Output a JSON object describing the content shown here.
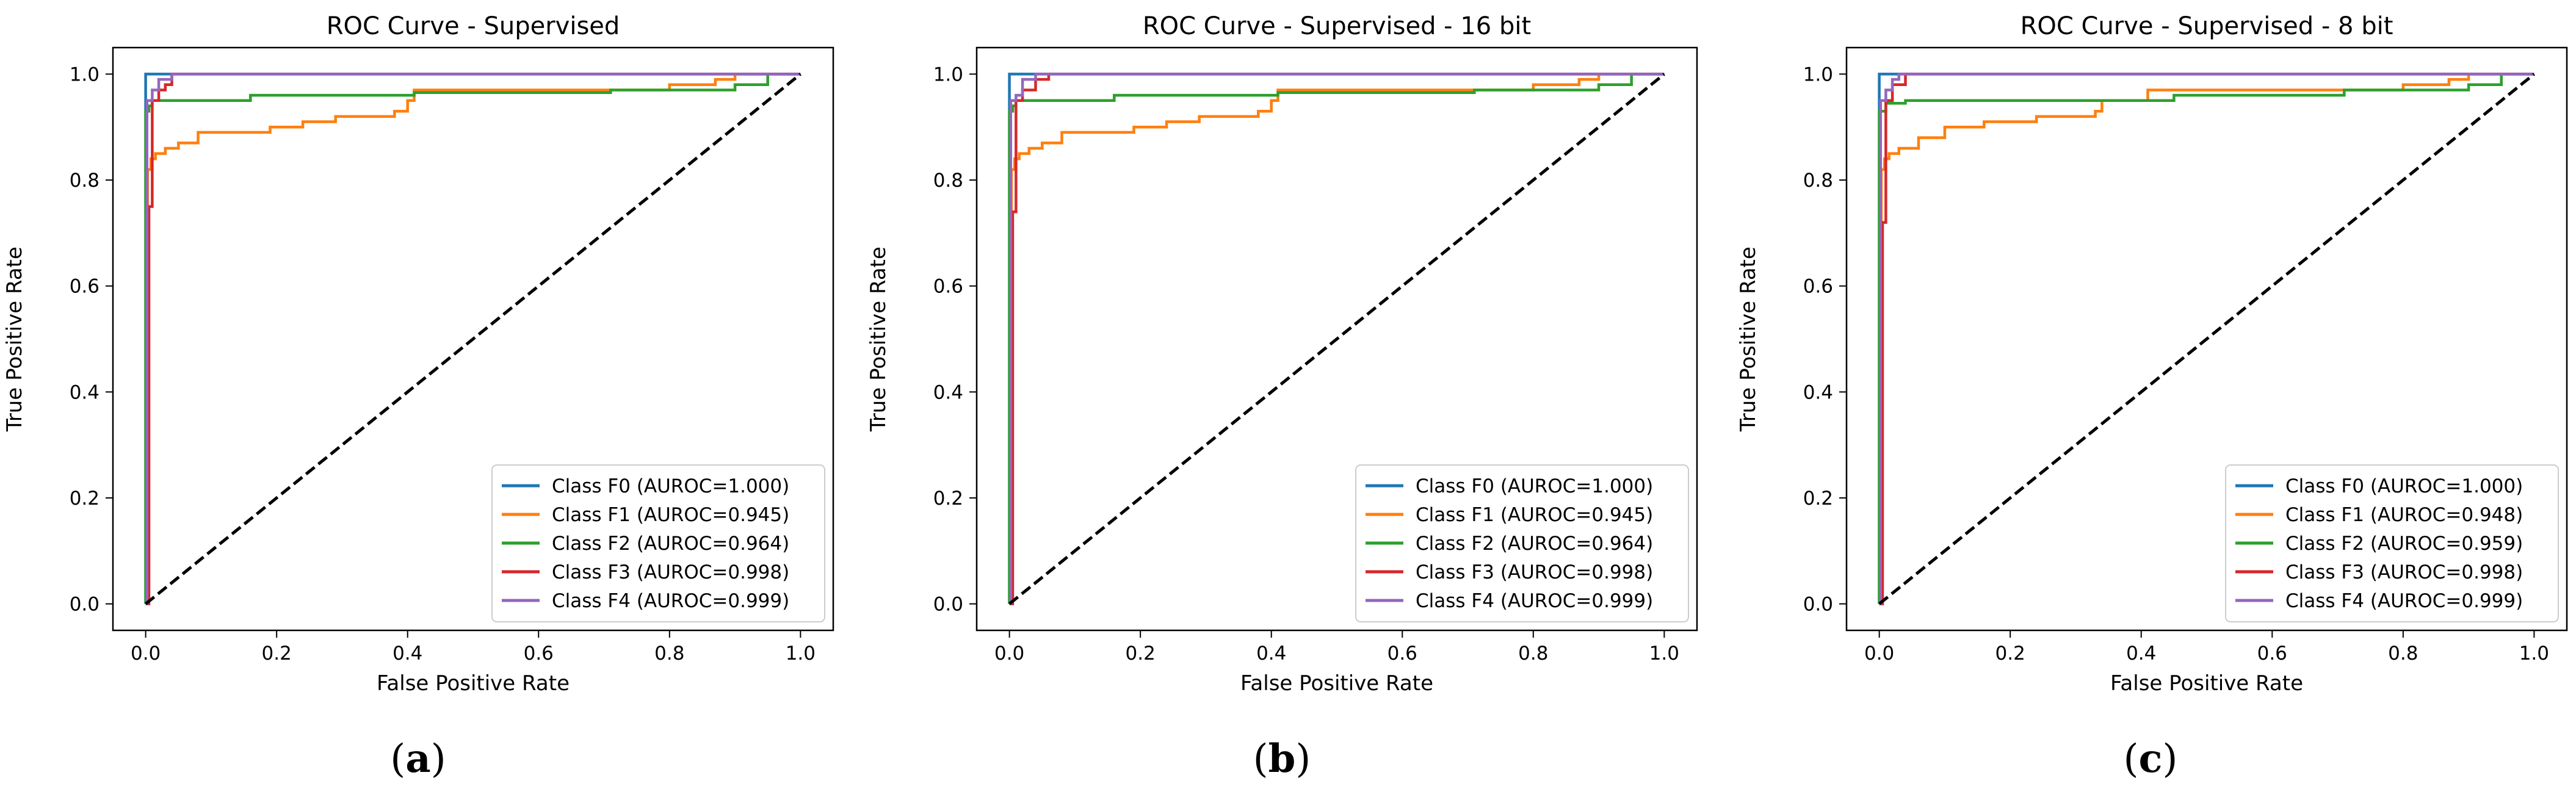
{
  "chart_data": [
    {
      "type": "line",
      "title": "ROC Curve - Supervised",
      "xlabel": "False Positive Rate",
      "ylabel": "True Positive Rate",
      "xlim": [
        -0.05,
        1.05
      ],
      "ylim": [
        -0.05,
        1.05
      ],
      "xticks": [
        "0.0",
        "0.2",
        "0.4",
        "0.6",
        "0.8",
        "1.0"
      ],
      "yticks": [
        "0.0",
        "0.2",
        "0.4",
        "0.6",
        "0.8",
        "1.0"
      ],
      "legend_position": "lower-right",
      "caption_letter": "a",
      "series": [
        {
          "name": "Class F0 (AUROC=1.000)",
          "color": "#1f77b4",
          "x": [
            0,
            0,
            0.003,
            0.02,
            1.0
          ],
          "y": [
            0,
            1.0,
            1.0,
            1.0,
            1.0
          ]
        },
        {
          "name": "Class F1 (AUROC=0.945)",
          "color": "#ff7f0e",
          "x": [
            0,
            0.003,
            0.003,
            0.008,
            0.008,
            0.015,
            0.015,
            0.03,
            0.03,
            0.05,
            0.05,
            0.08,
            0.08,
            0.19,
            0.19,
            0.24,
            0.24,
            0.29,
            0.29,
            0.38,
            0.38,
            0.4,
            0.4,
            0.41,
            0.41,
            0.8,
            0.8,
            0.87,
            0.87,
            0.9,
            0.9,
            1.0
          ],
          "y": [
            0,
            0,
            0.82,
            0.82,
            0.84,
            0.84,
            0.85,
            0.85,
            0.86,
            0.86,
            0.87,
            0.87,
            0.89,
            0.89,
            0.9,
            0.9,
            0.91,
            0.91,
            0.92,
            0.92,
            0.93,
            0.93,
            0.95,
            0.95,
            0.97,
            0.97,
            0.98,
            0.98,
            0.99,
            0.99,
            1.0,
            1.0
          ]
        },
        {
          "name": "Class F2 (AUROC=0.964)",
          "color": "#2ca02c",
          "x": [
            0,
            0,
            0.005,
            0.005,
            0.01,
            0.01,
            0.16,
            0.16,
            0.41,
            0.41,
            0.71,
            0.71,
            0.9,
            0.9,
            0.95,
            0.95,
            1.0
          ],
          "y": [
            0,
            0.93,
            0.93,
            0.94,
            0.94,
            0.95,
            0.95,
            0.96,
            0.96,
            0.965,
            0.965,
            0.97,
            0.97,
            0.98,
            0.98,
            1.0,
            1.0
          ]
        },
        {
          "name": "Class F3 (AUROC=0.998)",
          "color": "#d62728",
          "x": [
            0,
            0.005,
            0.005,
            0.01,
            0.01,
            0.02,
            0.02,
            0.03,
            0.03,
            0.04,
            0.04,
            1.0
          ],
          "y": [
            0,
            0,
            0.75,
            0.75,
            0.95,
            0.95,
            0.97,
            0.97,
            0.98,
            0.98,
            1.0,
            1.0
          ]
        },
        {
          "name": "Class F4 (AUROC=0.999)",
          "color": "#9467bd",
          "x": [
            0,
            0.002,
            0.002,
            0.01,
            0.01,
            0.02,
            0.02,
            0.04,
            0.04,
            1.0
          ],
          "y": [
            0,
            0,
            0.95,
            0.95,
            0.97,
            0.97,
            0.99,
            0.99,
            1.0,
            1.0
          ]
        },
        {
          "name": "chance",
          "color": "#000000",
          "dashed": true,
          "legend": false,
          "x": [
            0,
            1
          ],
          "y": [
            0,
            1
          ]
        }
      ]
    },
    {
      "type": "line",
      "title": "ROC Curve - Supervised - 16 bit",
      "xlabel": "False Positive Rate",
      "ylabel": "True Positive Rate",
      "xlim": [
        -0.05,
        1.05
      ],
      "ylim": [
        -0.05,
        1.05
      ],
      "xticks": [
        "0.0",
        "0.2",
        "0.4",
        "0.6",
        "0.8",
        "1.0"
      ],
      "yticks": [
        "0.0",
        "0.2",
        "0.4",
        "0.6",
        "0.8",
        "1.0"
      ],
      "legend_position": "lower-right",
      "caption_letter": "b",
      "series": [
        {
          "name": "Class F0 (AUROC=1.000)",
          "color": "#1f77b4",
          "x": [
            0,
            0,
            0.003,
            0.02,
            1.0
          ],
          "y": [
            0,
            1.0,
            1.0,
            1.0,
            1.0
          ]
        },
        {
          "name": "Class F1 (AUROC=0.945)",
          "color": "#ff7f0e",
          "x": [
            0,
            0.003,
            0.003,
            0.008,
            0.008,
            0.015,
            0.015,
            0.03,
            0.03,
            0.05,
            0.05,
            0.08,
            0.08,
            0.19,
            0.19,
            0.24,
            0.24,
            0.29,
            0.29,
            0.38,
            0.38,
            0.4,
            0.4,
            0.41,
            0.41,
            0.8,
            0.8,
            0.87,
            0.87,
            0.9,
            0.9,
            1.0
          ],
          "y": [
            0,
            0,
            0.82,
            0.82,
            0.84,
            0.84,
            0.85,
            0.85,
            0.86,
            0.86,
            0.87,
            0.87,
            0.89,
            0.89,
            0.9,
            0.9,
            0.91,
            0.91,
            0.92,
            0.92,
            0.93,
            0.93,
            0.95,
            0.95,
            0.97,
            0.97,
            0.98,
            0.98,
            0.99,
            0.99,
            1.0,
            1.0
          ]
        },
        {
          "name": "Class F2 (AUROC=0.964)",
          "color": "#2ca02c",
          "x": [
            0,
            0,
            0.005,
            0.005,
            0.01,
            0.01,
            0.16,
            0.16,
            0.41,
            0.41,
            0.71,
            0.71,
            0.9,
            0.9,
            0.95,
            0.95,
            1.0
          ],
          "y": [
            0,
            0.93,
            0.93,
            0.94,
            0.94,
            0.95,
            0.95,
            0.96,
            0.96,
            0.965,
            0.965,
            0.97,
            0.97,
            0.98,
            0.98,
            1.0,
            1.0
          ]
        },
        {
          "name": "Class F3 (AUROC=0.998)",
          "color": "#d62728",
          "x": [
            0,
            0.005,
            0.005,
            0.01,
            0.01,
            0.02,
            0.02,
            0.04,
            0.04,
            0.06,
            0.06,
            1.0
          ],
          "y": [
            0,
            0,
            0.74,
            0.74,
            0.95,
            0.95,
            0.97,
            0.97,
            0.99,
            0.99,
            1.0,
            1.0
          ]
        },
        {
          "name": "Class F4 (AUROC=0.999)",
          "color": "#9467bd",
          "x": [
            0,
            0.002,
            0.002,
            0.01,
            0.01,
            0.02,
            0.02,
            0.04,
            0.04,
            1.0
          ],
          "y": [
            0,
            0,
            0.95,
            0.95,
            0.96,
            0.96,
            0.99,
            0.99,
            1.0,
            1.0
          ]
        },
        {
          "name": "chance",
          "color": "#000000",
          "dashed": true,
          "legend": false,
          "x": [
            0,
            1
          ],
          "y": [
            0,
            1
          ]
        }
      ]
    },
    {
      "type": "line",
      "title": "ROC Curve - Supervised - 8 bit",
      "xlabel": "False Positive Rate",
      "ylabel": "True Positive Rate",
      "xlim": [
        -0.05,
        1.05
      ],
      "ylim": [
        -0.05,
        1.05
      ],
      "xticks": [
        "0.0",
        "0.2",
        "0.4",
        "0.6",
        "0.8",
        "1.0"
      ],
      "yticks": [
        "0.0",
        "0.2",
        "0.4",
        "0.6",
        "0.8",
        "1.0"
      ],
      "legend_position": "lower-right",
      "caption_letter": "c",
      "series": [
        {
          "name": "Class F0 (AUROC=1.000)",
          "color": "#1f77b4",
          "x": [
            0,
            0,
            0.003,
            0.04,
            1.0
          ],
          "y": [
            0,
            1.0,
            1.0,
            1.0,
            1.0
          ]
        },
        {
          "name": "Class F1 (AUROC=0.948)",
          "color": "#ff7f0e",
          "x": [
            0,
            0.003,
            0.003,
            0.008,
            0.008,
            0.015,
            0.015,
            0.03,
            0.03,
            0.06,
            0.06,
            0.1,
            0.1,
            0.16,
            0.16,
            0.24,
            0.24,
            0.33,
            0.33,
            0.34,
            0.34,
            0.41,
            0.41,
            0.8,
            0.8,
            0.87,
            0.87,
            0.9,
            0.9,
            1.0
          ],
          "y": [
            0,
            0,
            0.82,
            0.82,
            0.84,
            0.84,
            0.85,
            0.85,
            0.86,
            0.86,
            0.88,
            0.88,
            0.9,
            0.9,
            0.91,
            0.91,
            0.92,
            0.92,
            0.93,
            0.93,
            0.95,
            0.95,
            0.97,
            0.97,
            0.98,
            0.98,
            0.99,
            0.99,
            1.0,
            1.0
          ]
        },
        {
          "name": "Class F2 (AUROC=0.959)",
          "color": "#2ca02c",
          "x": [
            0,
            0,
            0.01,
            0.01,
            0.04,
            0.04,
            0.45,
            0.45,
            0.71,
            0.71,
            0.9,
            0.9,
            0.95,
            0.95,
            1.0
          ],
          "y": [
            0,
            0.93,
            0.93,
            0.945,
            0.945,
            0.95,
            0.95,
            0.96,
            0.96,
            0.97,
            0.97,
            0.98,
            0.98,
            1.0,
            1.0
          ]
        },
        {
          "name": "Class F3 (AUROC=0.998)",
          "color": "#d62728",
          "x": [
            0,
            0.005,
            0.005,
            0.01,
            0.01,
            0.02,
            0.02,
            0.04,
            0.04,
            1.0
          ],
          "y": [
            0,
            0,
            0.72,
            0.72,
            0.95,
            0.95,
            0.98,
            0.98,
            1.0,
            1.0
          ]
        },
        {
          "name": "Class F4 (AUROC=0.999)",
          "color": "#9467bd",
          "x": [
            0,
            0.002,
            0.002,
            0.01,
            0.01,
            0.02,
            0.02,
            0.03,
            0.03,
            1.0
          ],
          "y": [
            0,
            0,
            0.95,
            0.95,
            0.97,
            0.97,
            0.99,
            0.99,
            1.0,
            1.0
          ]
        },
        {
          "name": "chance",
          "color": "#000000",
          "dashed": true,
          "legend": false,
          "x": [
            0,
            1
          ],
          "y": [
            0,
            1
          ]
        }
      ]
    }
  ]
}
